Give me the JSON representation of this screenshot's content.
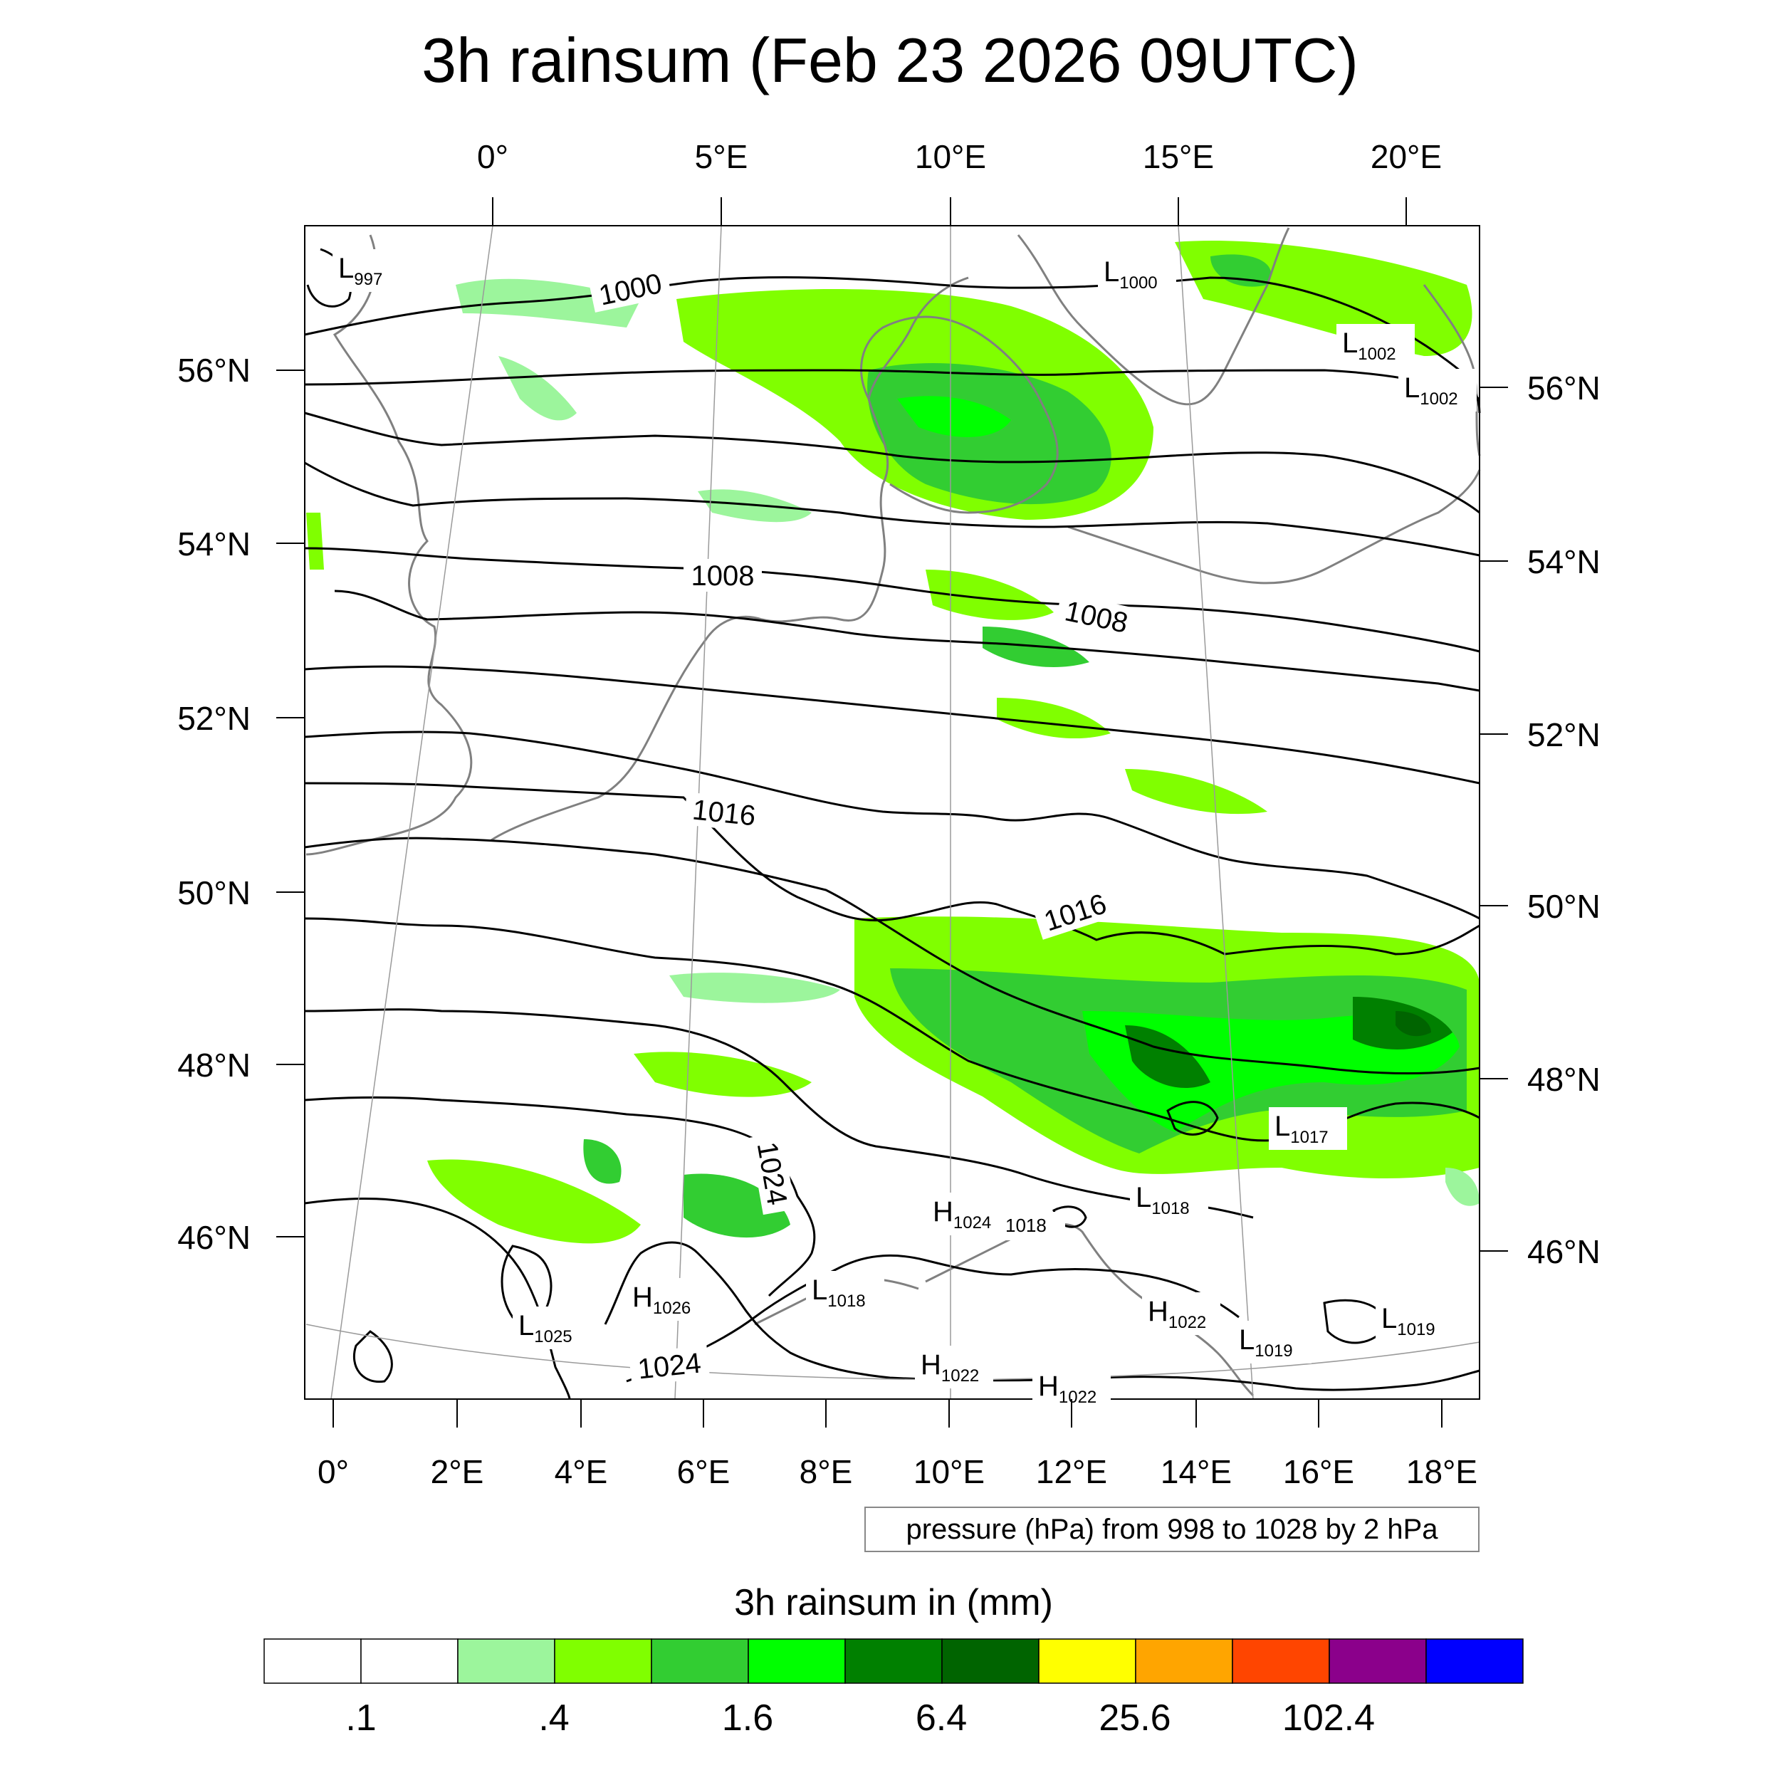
{
  "title": "3h rainsum (Feb 23 2026 09UTC)",
  "top_lon_labels": [
    "0°",
    "5°E",
    "10°E",
    "15°E",
    "20°E"
  ],
  "bottom_lon_labels": [
    "0°",
    "2°E",
    "4°E",
    "6°E",
    "8°E",
    "10°E",
    "12°E",
    "14°E",
    "16°E",
    "18°E"
  ],
  "left_lat_labels": [
    "56°N",
    "54°N",
    "52°N",
    "50°N",
    "48°N",
    "46°N"
  ],
  "right_lat_labels": [
    "56°N",
    "54°N",
    "52°N",
    "50°N",
    "48°N",
    "46°N"
  ],
  "contour_labels": [
    "1000",
    "1008",
    "1008",
    "1016",
    "1016",
    "1024",
    "1024"
  ],
  "pressure_centers": [
    {
      "letter": "L",
      "value": "997"
    },
    {
      "letter": "L",
      "value": "1000"
    },
    {
      "letter": "L",
      "value": "1002"
    },
    {
      "letter": "L",
      "value": "1002"
    },
    {
      "letter": "L",
      "value": "1017"
    },
    {
      "letter": "L",
      "value": "1018"
    },
    {
      "letter": "H",
      "value": "1024"
    },
    {
      "letter": "",
      "value": "1018"
    },
    {
      "letter": "H",
      "value": "1026"
    },
    {
      "letter": "L",
      "value": "1018"
    },
    {
      "letter": "L",
      "value": "1025"
    },
    {
      "letter": "H",
      "value": "1022"
    },
    {
      "letter": "H",
      "value": "1022"
    },
    {
      "letter": "H",
      "value": "1022"
    },
    {
      "letter": "L",
      "value": "1019"
    },
    {
      "letter": "L",
      "value": "1019"
    }
  ],
  "info_box": "pressure (hPa) from 998 to 1028 by 2 hPa",
  "legend": {
    "title": "3h rainsum in (mm)",
    "colors": [
      "#ffffff",
      "#ffffff",
      "#9cf59c",
      "#80ff00",
      "#32cd32",
      "#00ff00",
      "#008000",
      "#006400",
      "#ffff00",
      "#ffa500",
      "#ff4500",
      "#8b008b",
      "#0000ff"
    ],
    "labels": [
      ".1",
      ".4",
      "1.6",
      "6.4",
      "25.6",
      "102.4"
    ]
  }
}
